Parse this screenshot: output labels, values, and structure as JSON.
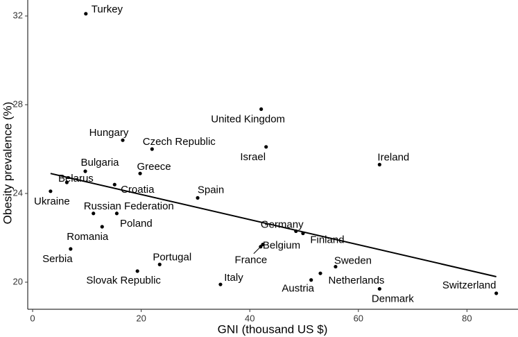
{
  "chart_data": {
    "type": "scatter",
    "xlabel": "GNI (thousand US $)",
    "ylabel": "Obesity prevalence (%)",
    "xlim": [
      -0.9,
      89.4
    ],
    "ylim": [
      18.78,
      32.72
    ],
    "xticks": [
      0,
      20,
      40,
      60,
      80
    ],
    "yticks": [
      20,
      24,
      28,
      32
    ],
    "grid": false,
    "color": "#000000",
    "labels": [
      "Turkey",
      "United Kingdom",
      "Hungary",
      "Czech Republic",
      "Israel",
      "Ireland",
      "Bulgaria",
      "Greece",
      "Belarus",
      "Croatia",
      "Ukraine",
      "Spain",
      "Russian Federation",
      "Poland",
      "Romania",
      "Germany",
      "Finland",
      "Belgium",
      "France",
      "Serbia",
      "Portugal",
      "Sweden",
      "Slovak Republic",
      "Netherlands",
      "Austria",
      "Italy",
      "Denmark",
      "Switzerland"
    ],
    "x": [
      9.8,
      42.1,
      16.6,
      22.0,
      43.0,
      63.9,
      9.7,
      19.8,
      6.3,
      15.1,
      3.3,
      30.4,
      11.2,
      15.5,
      12.8,
      48.5,
      49.8,
      42.4,
      42.0,
      7.0,
      23.4,
      55.8,
      19.3,
      53.0,
      51.3,
      34.6,
      63.9,
      85.4
    ],
    "y": [
      32.1,
      27.8,
      26.4,
      26.0,
      26.1,
      25.3,
      25.0,
      24.9,
      24.5,
      24.4,
      24.1,
      23.8,
      23.1,
      23.1,
      22.5,
      22.3,
      22.2,
      21.7,
      21.6,
      21.5,
      20.8,
      20.7,
      20.5,
      20.4,
      20.1,
      19.9,
      19.7,
      19.5
    ],
    "trend": {
      "x": [
        3.3,
        85.4
      ],
      "y": [
        24.9,
        20.25
      ]
    }
  }
}
